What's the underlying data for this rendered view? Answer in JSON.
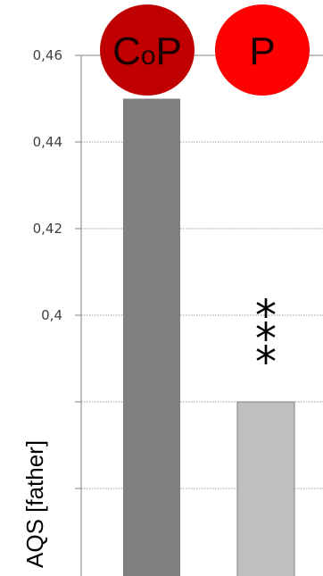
{
  "chart_data": {
    "type": "bar",
    "title": "",
    "xlabel": "",
    "ylabel": "AQS [father]",
    "ylim": [
      0.36,
      0.46
    ],
    "y_ticks": [
      0.36,
      0.38,
      0.4,
      0.42,
      0.44,
      0.46
    ],
    "y_tick_labels": [
      "",
      "",
      "0,4",
      "0,42",
      "0,44",
      "0,46"
    ],
    "grid": true,
    "categories": [
      "CoP",
      "P"
    ],
    "values": [
      0.45,
      0.38
    ],
    "bar_colors": [
      "#808080",
      "#bfbfbf"
    ],
    "badges": [
      {
        "label_main": "C",
        "label_sub": "o",
        "label_end": "P",
        "color": "#c00000"
      },
      {
        "label_main": "P",
        "label_sub": "",
        "label_end": "",
        "color": "#ff0000"
      }
    ],
    "annotations": [
      {
        "category": "P",
        "text": "***"
      }
    ]
  }
}
